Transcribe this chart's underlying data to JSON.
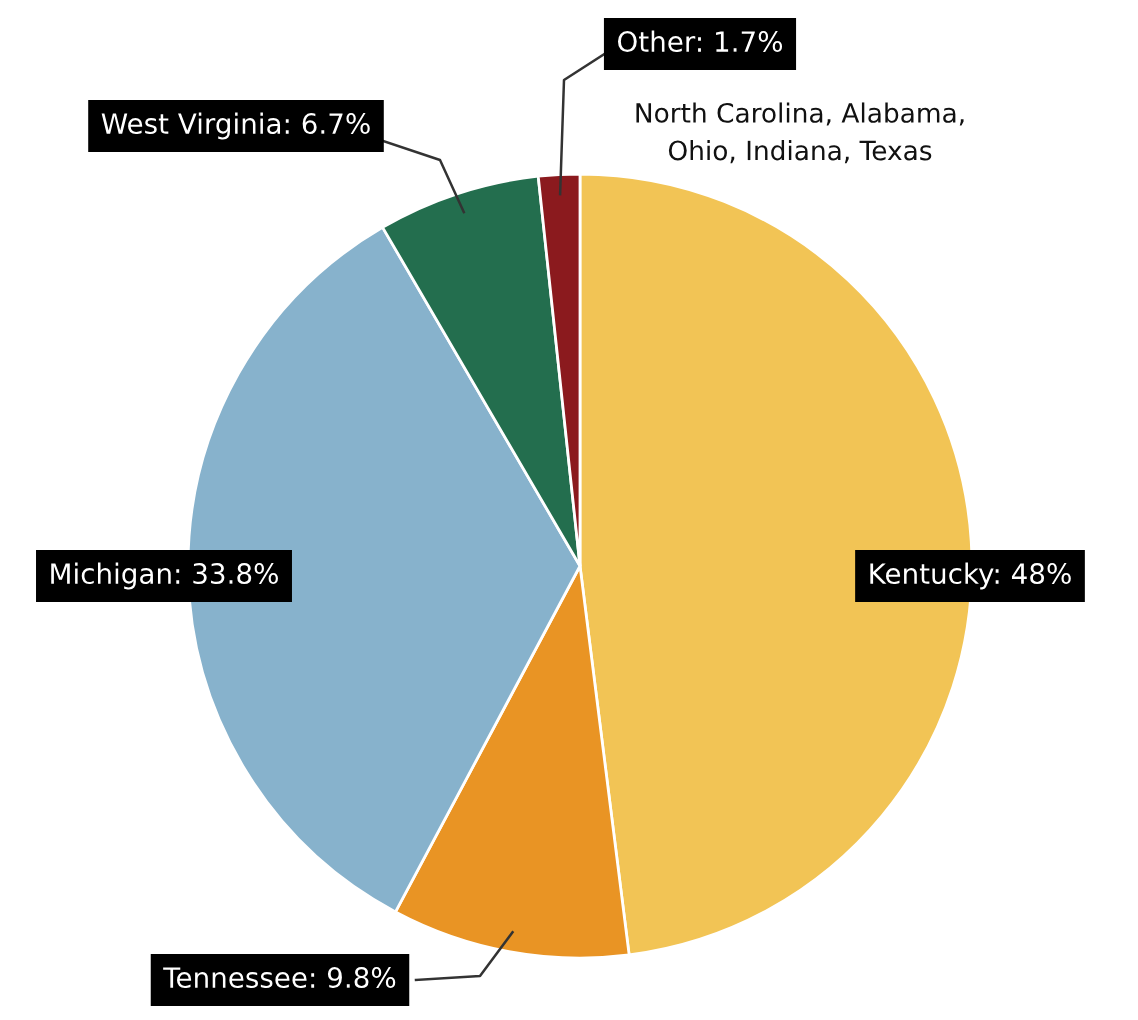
{
  "chart_data": {
    "type": "pie",
    "categories": [
      "Kentucky",
      "Tennessee",
      "Michigan",
      "West Virginia",
      "Other"
    ],
    "values": [
      48,
      9.8,
      33.8,
      6.7,
      1.7
    ],
    "colors": [
      "#f2c455",
      "#e99424",
      "#87b2cc",
      "#236e4e",
      "#8b1a1e"
    ],
    "value_labels": [
      "48%",
      "9.8%",
      "33.8%",
      "6.7%",
      "1.7%"
    ],
    "annotations": [
      "North Carolina, Alabama,\nOhio, Indiana, Texas"
    ]
  }
}
